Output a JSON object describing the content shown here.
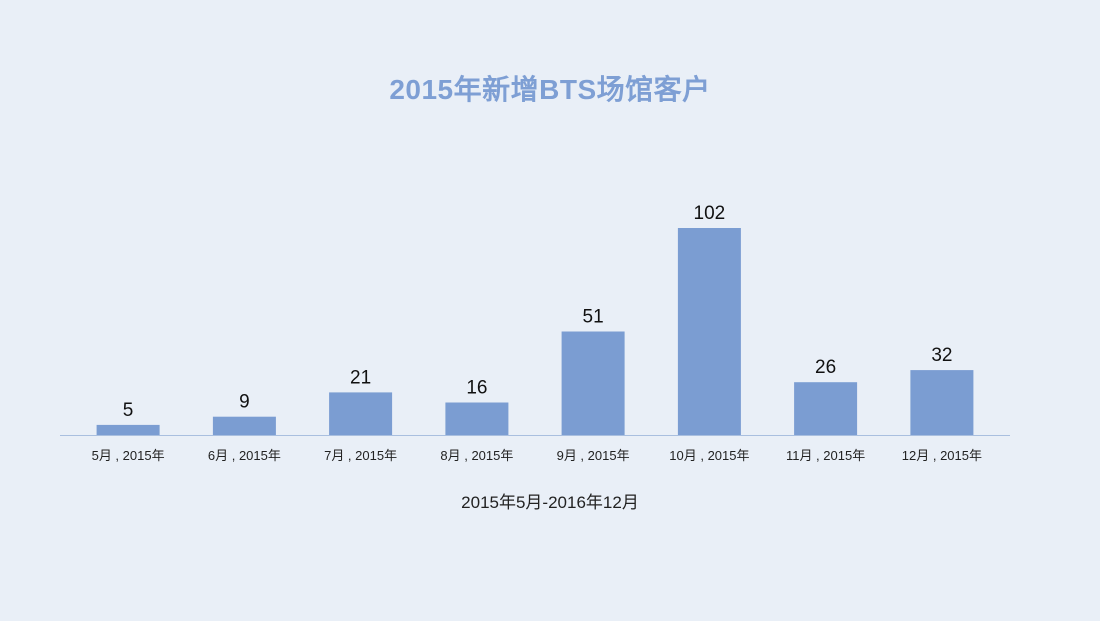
{
  "chart_data": {
    "type": "bar",
    "title": "2015年新增BTS场馆客户",
    "xlabel": "2015年5月-2016年12月",
    "ylabel": "",
    "categories": [
      "5月 , 2015年",
      "6月 , 2015年",
      "7月 , 2015年",
      "8月 , 2015年",
      "9月 , 2015年",
      "10月 , 2015年",
      "11月 , 2015年",
      "12月 , 2015年"
    ],
    "values": [
      5,
      9,
      21,
      16,
      51,
      102,
      26,
      32
    ],
    "ylim": [
      0,
      102
    ],
    "grid": false,
    "legend": "none",
    "colors": {
      "bar": "#7b9dd2",
      "axis": "#a9bfdf",
      "title": "#7e9fd4",
      "background": "#e9eff7"
    }
  }
}
